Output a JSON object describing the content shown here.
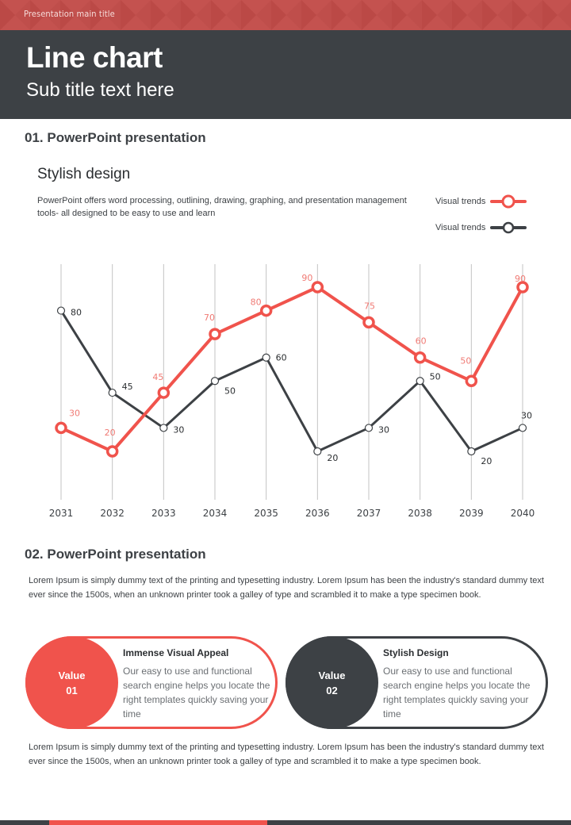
{
  "header": {
    "top_title": "Presentation main title",
    "title": "Line chart",
    "subtitle": "Sub title text here"
  },
  "section1": {
    "title": "01. PowerPoint presentation",
    "subtitle": "Stylish design",
    "description": "PowerPoint offers word processing, outlining, drawing, graphing, and presentation management  tools- all designed to be easy to use and learn"
  },
  "legend": [
    {
      "label": "Visual trends",
      "color": "#f0534c"
    },
    {
      "label": "Visual trends",
      "color": "#3d4145"
    }
  ],
  "chart_data": {
    "type": "line",
    "title": "",
    "xlabel": "",
    "ylabel": "",
    "x": [
      "2031",
      "2032",
      "2033",
      "2034",
      "2035",
      "2036",
      "2037",
      "2038",
      "2039",
      "2040"
    ],
    "ylim": [
      0,
      100
    ],
    "grid": "vertical",
    "legend_position": "top-right",
    "series": [
      {
        "name": "Visual trends",
        "color": "#f0534c",
        "values": [
          30,
          20,
          45,
          70,
          80,
          90,
          75,
          60,
          50,
          90
        ]
      },
      {
        "name": "Visual trends",
        "color": "#3d4145",
        "values": [
          80,
          45,
          30,
          50,
          60,
          20,
          30,
          50,
          20,
          30
        ]
      }
    ]
  },
  "section2": {
    "title": "02. PowerPoint presentation",
    "paragraph1": "Lorem Ipsum is simply dummy text of the printing and typesetting industry. Lorem Ipsum has been the industry's standard dummy text ever since the 1500s, when an unknown printer took a galley of type and scrambled it to make a type specimen book.",
    "paragraph2": "Lorem Ipsum is simply dummy text of the printing and typesetting industry. Lorem Ipsum has been the industry's standard dummy text ever since the 1500s, when an unknown printer took a galley of type and scrambled it to make a type specimen book."
  },
  "values": [
    {
      "label": "Value",
      "number": "01",
      "title": "Immense  Visual Appeal",
      "text": "Our easy to use and functional search engine helps you locate the right templates quickly saving your time"
    },
    {
      "label": "Value",
      "number": "02",
      "title": "Stylish Design",
      "text": "Our easy to use and functional search engine helps you locate the right templates quickly saving your time"
    }
  ]
}
